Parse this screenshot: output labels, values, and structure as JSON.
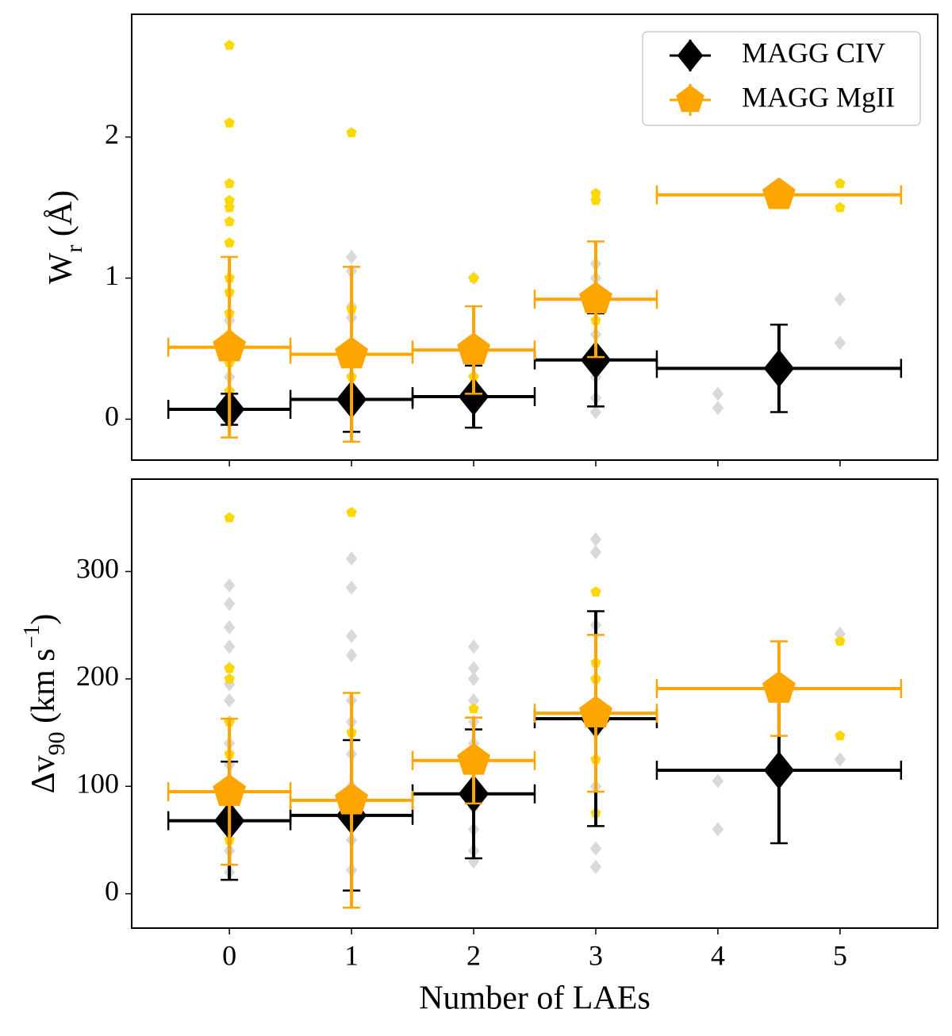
{
  "chart_data": [
    {
      "type": "scatter",
      "xlim": [
        -0.8,
        5.8
      ],
      "xticks": [
        0,
        1,
        2,
        3,
        4,
        5
      ],
      "show_xticklabels": false,
      "ylim": [
        -0.29,
        2.87
      ],
      "yticks": [
        0,
        1,
        2
      ],
      "ylabel": {
        "main": "W",
        "sub": "r",
        "rest": " (Å)"
      },
      "legend": "upper right",
      "series": [
        {
          "color": "#d9d9d9",
          "marker": "diamond",
          "size": 9,
          "x": [
            0,
            0,
            0,
            0,
            0,
            0,
            0,
            0,
            0,
            1,
            1,
            1,
            1,
            1,
            1,
            1,
            2,
            2,
            2,
            2,
            3,
            3,
            3,
            3,
            3,
            3,
            3,
            4,
            4,
            5,
            5
          ],
          "values": [
            0.7,
            0.6,
            0.5,
            0.4,
            0.3,
            0.2,
            0.15,
            0.1,
            0.05,
            1.15,
            1.05,
            0.8,
            0.72,
            0.5,
            0.3,
            0.1,
            1.0,
            0.55,
            0.3,
            0.1,
            1.1,
            1.0,
            0.9,
            0.6,
            0.3,
            0.15,
            0.05,
            0.18,
            0.08,
            0.85,
            0.54
          ]
        },
        {
          "color": "#ffd700",
          "marker": "pentagon",
          "size": 7,
          "x": [
            0,
            0,
            0,
            0,
            0,
            0,
            0,
            0,
            0,
            0,
            0,
            0,
            0,
            1,
            1,
            1,
            1,
            2,
            2,
            3,
            3,
            3,
            5,
            5
          ],
          "values": [
            2.65,
            2.1,
            1.67,
            1.55,
            1.5,
            1.4,
            1.25,
            1.0,
            0.9,
            0.75,
            0.6,
            0.4,
            0.2,
            2.03,
            0.78,
            0.5,
            0.3,
            1.0,
            0.3,
            1.6,
            1.55,
            0.7,
            1.67,
            1.5
          ]
        },
        {
          "name": "MAGG CIV",
          "color": "#000000",
          "marker": "diamond",
          "size": 24,
          "x": [
            0,
            1,
            2,
            3,
            4.5
          ],
          "xerr": [
            0.5,
            0.5,
            0.5,
            0.5,
            1.0
          ],
          "values": [
            0.07,
            0.14,
            0.16,
            0.42,
            0.36
          ],
          "errors": [
            0.11,
            0.23,
            0.22,
            0.33,
            0.31
          ]
        },
        {
          "name": "MAGG MgII",
          "color": "#ffa500",
          "marker": "pentagon",
          "size": 22,
          "x": [
            0,
            1,
            2,
            3,
            4.5
          ],
          "xerr": [
            0.5,
            0.5,
            0.5,
            0.5,
            1.0
          ],
          "values": [
            0.51,
            0.46,
            0.49,
            0.85,
            1.59
          ],
          "errors": [
            0.64,
            0.62,
            0.31,
            0.41,
            0.0
          ]
        }
      ]
    },
    {
      "type": "scatter",
      "xlim": [
        -0.8,
        5.8
      ],
      "xticks": [
        0,
        1,
        2,
        3,
        4,
        5
      ],
      "show_xticklabels": true,
      "ylim": [
        -32,
        386
      ],
      "yticks": [
        0,
        100,
        200,
        300
      ],
      "xlabel": "Number of LAEs",
      "ylabel": {
        "main": "Δv",
        "sub": "90",
        "rest": " (km s",
        "sup": "−1",
        "end": ")"
      },
      "series": [
        {
          "color": "#d9d9d9",
          "marker": "diamond",
          "size": 9,
          "x": [
            0,
            0,
            0,
            0,
            0,
            0,
            0,
            0,
            0,
            0,
            0,
            0,
            0,
            0,
            0,
            1,
            1,
            1,
            1,
            1,
            1,
            1,
            1,
            1,
            1,
            1,
            2,
            2,
            2,
            2,
            2,
            2,
            2,
            2,
            2,
            2,
            2,
            2,
            3,
            3,
            3,
            3,
            3,
            3,
            3,
            3,
            4,
            4,
            5,
            5
          ],
          "values": [
            287,
            270,
            248,
            230,
            210,
            195,
            180,
            160,
            140,
            120,
            100,
            80,
            60,
            40,
            20,
            312,
            285,
            240,
            222,
            180,
            160,
            130,
            100,
            80,
            50,
            22,
            230,
            210,
            200,
            180,
            160,
            140,
            120,
            100,
            80,
            60,
            40,
            30,
            330,
            318,
            250,
            200,
            150,
            100,
            42,
            25,
            105,
            60,
            242,
            125
          ]
        },
        {
          "color": "#ffd700",
          "marker": "pentagon",
          "size": 7,
          "x": [
            0,
            0,
            0,
            0,
            0,
            0,
            0,
            1,
            1,
            1,
            2,
            2,
            3,
            3,
            3,
            3,
            3,
            5,
            5
          ],
          "values": [
            350,
            210,
            200,
            160,
            130,
            80,
            50,
            355,
            150,
            80,
            172,
            85,
            281,
            215,
            200,
            125,
            75,
            235,
            147
          ]
        },
        {
          "color": "#000000",
          "marker": "diamond",
          "size": 24,
          "x": [
            0,
            1,
            2,
            3,
            4.5
          ],
          "xerr": [
            0.5,
            0.5,
            0.5,
            0.5,
            1.0
          ],
          "values": [
            68,
            73,
            93,
            163,
            115
          ],
          "errors": [
            55,
            70,
            60,
            100,
            68
          ]
        },
        {
          "color": "#ffa500",
          "marker": "pentagon",
          "size": 22,
          "x": [
            0,
            1,
            2,
            3,
            4.5
          ],
          "xerr": [
            0.5,
            0.5,
            0.5,
            0.5,
            1.0
          ],
          "values": [
            95,
            87,
            124,
            168,
            191
          ],
          "errors": [
            68,
            100,
            40,
            73,
            44
          ]
        }
      ]
    }
  ]
}
